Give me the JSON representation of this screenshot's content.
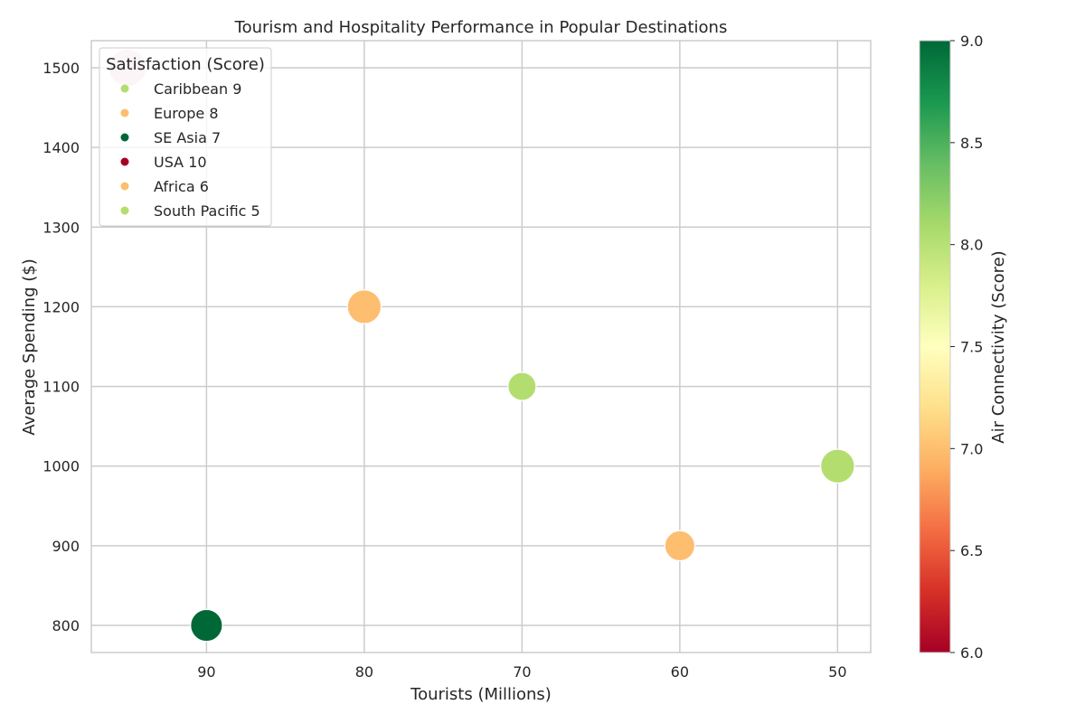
{
  "chart_data": {
    "type": "scatter",
    "title": "Tourism and Hospitality Performance in Popular Destinations",
    "xlabel": "Tourists (Millions)",
    "ylabel": "Average Spending ($)",
    "x_inverted": true,
    "xlim": [
      97.3,
      47.9
    ],
    "ylim": [
      766,
      1534
    ],
    "x_ticks": [
      90,
      80,
      70,
      60,
      50
    ],
    "y_ticks": [
      800,
      900,
      1000,
      1100,
      1200,
      1300,
      1400,
      1500
    ],
    "grid": true,
    "legend": {
      "title": "Satisfaction (Score)",
      "placement": "upper-left",
      "entries": [
        {
          "label": "Caribbean 9",
          "color": "#b4dd70"
        },
        {
          "label": "Europe 8",
          "color": "#fdbe70"
        },
        {
          "label": "SE Asia 7",
          "color": "#006837"
        },
        {
          "label": "USA 10",
          "color": "#a50026"
        },
        {
          "label": "Africa 6",
          "color": "#fdbe70"
        },
        {
          "label": "South Pacific 5",
          "color": "#b4dd70"
        }
      ]
    },
    "points": [
      {
        "x": 95,
        "y": 1500,
        "color": "#a50026",
        "size": 10,
        "alpha": 0.2
      },
      {
        "x": 80,
        "y": 1200,
        "color": "#fdbe70",
        "size": 8
      },
      {
        "x": 70,
        "y": 1100,
        "color": "#b4dd70",
        "size": 5
      },
      {
        "x": 50,
        "y": 1000,
        "color": "#b4dd70",
        "size": 8
      },
      {
        "x": 60,
        "y": 900,
        "color": "#fdbe70",
        "size": 6
      },
      {
        "x": 90,
        "y": 800,
        "color": "#006837",
        "size": 7
      }
    ],
    "colorbar": {
      "label": "Air Connectivity (Score)",
      "min": 6.0,
      "max": 9.0,
      "ticks": [
        "6.0",
        "6.5",
        "7.0",
        "7.5",
        "8.0",
        "8.5",
        "9.0"
      ],
      "colormap": "RdYlGn",
      "stops": [
        "#a50026",
        "#d73027",
        "#f46d43",
        "#fdae61",
        "#fee08b",
        "#ffffbf",
        "#d9ef8b",
        "#a6d96a",
        "#66bd63",
        "#1a9850",
        "#006837"
      ]
    }
  }
}
